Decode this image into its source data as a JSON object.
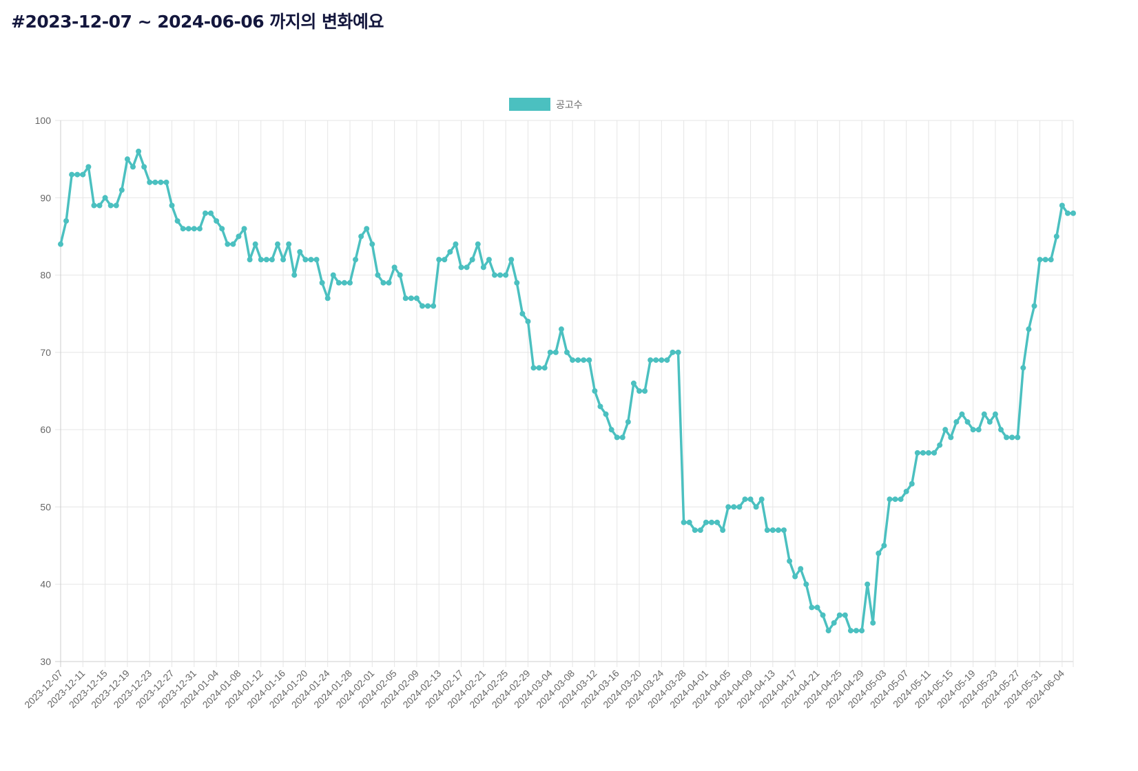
{
  "title": "#2023-12-07 ~ 2024-06-06 까지의 변화예요",
  "chart_data": {
    "type": "line",
    "title": "",
    "legend": {
      "label": "공고수",
      "position": "top-center"
    },
    "color": "#4bc0c0",
    "x_start": "2023-12-07",
    "x_end": "2024-06-06",
    "x_tick_every_days": 4,
    "x_tick_labels": [
      "2023-12-07",
      "2023-12-11",
      "2023-12-15",
      "2023-12-19",
      "2023-12-23",
      "2023-12-27",
      "2023-12-31",
      "2024-01-04",
      "2024-01-08",
      "2024-01-12",
      "2024-01-16",
      "2024-01-20",
      "2024-01-24",
      "2024-01-28",
      "2024-02-01",
      "2024-02-05",
      "2024-02-09",
      "2024-02-13",
      "2024-02-17",
      "2024-02-21",
      "2024-02-25",
      "2024-02-29",
      "2024-03-04",
      "2024-03-08",
      "2024-03-12",
      "2024-03-16",
      "2024-03-20",
      "2024-03-24",
      "2024-03-28",
      "2024-04-01",
      "2024-04-05",
      "2024-04-09",
      "2024-04-13",
      "2024-04-17",
      "2024-04-21",
      "2024-04-25",
      "2024-04-29",
      "2024-05-03",
      "2024-05-07",
      "2024-05-11",
      "2024-05-15",
      "2024-05-19",
      "2024-05-23",
      "2024-05-27",
      "2024-05-31",
      "2024-06-04"
    ],
    "ylim": [
      30,
      100
    ],
    "y_ticks": [
      30,
      40,
      50,
      60,
      70,
      80,
      90,
      100
    ],
    "grid": true,
    "values": [
      84,
      87,
      93,
      93,
      93,
      94,
      89,
      89,
      90,
      89,
      89,
      91,
      95,
      94,
      96,
      94,
      92,
      92,
      92,
      92,
      89,
      87,
      86,
      86,
      86,
      86,
      88,
      88,
      87,
      86,
      84,
      84,
      85,
      86,
      82,
      84,
      82,
      82,
      82,
      84,
      82,
      84,
      80,
      83,
      82,
      82,
      82,
      79,
      77,
      80,
      79,
      79,
      79,
      82,
      85,
      86,
      84,
      80,
      79,
      79,
      81,
      80,
      77,
      77,
      77,
      76,
      76,
      76,
      82,
      82,
      83,
      84,
      81,
      81,
      82,
      84,
      81,
      82,
      80,
      80,
      80,
      82,
      79,
      75,
      74,
      68,
      68,
      68,
      70,
      70,
      73,
      70,
      69,
      69,
      69,
      69,
      65,
      63,
      62,
      60,
      59,
      59,
      61,
      66,
      65,
      65,
      69,
      69,
      69,
      69,
      70,
      70,
      48,
      48,
      47,
      47,
      48,
      48,
      48,
      47,
      50,
      50,
      50,
      51,
      51,
      50,
      51,
      47,
      47,
      47,
      47,
      43,
      41,
      42,
      40,
      37,
      37,
      36,
      34,
      35,
      36,
      36,
      34,
      34,
      34,
      40,
      35,
      44,
      45,
      51,
      51,
      51,
      52,
      53,
      57,
      57,
      57,
      57,
      58,
      60,
      59,
      61,
      62,
      61,
      60,
      60,
      62,
      61,
      62,
      60,
      59,
      59,
      59,
      68,
      73,
      76,
      82,
      82,
      82,
      85,
      89,
      88,
      88
    ]
  }
}
